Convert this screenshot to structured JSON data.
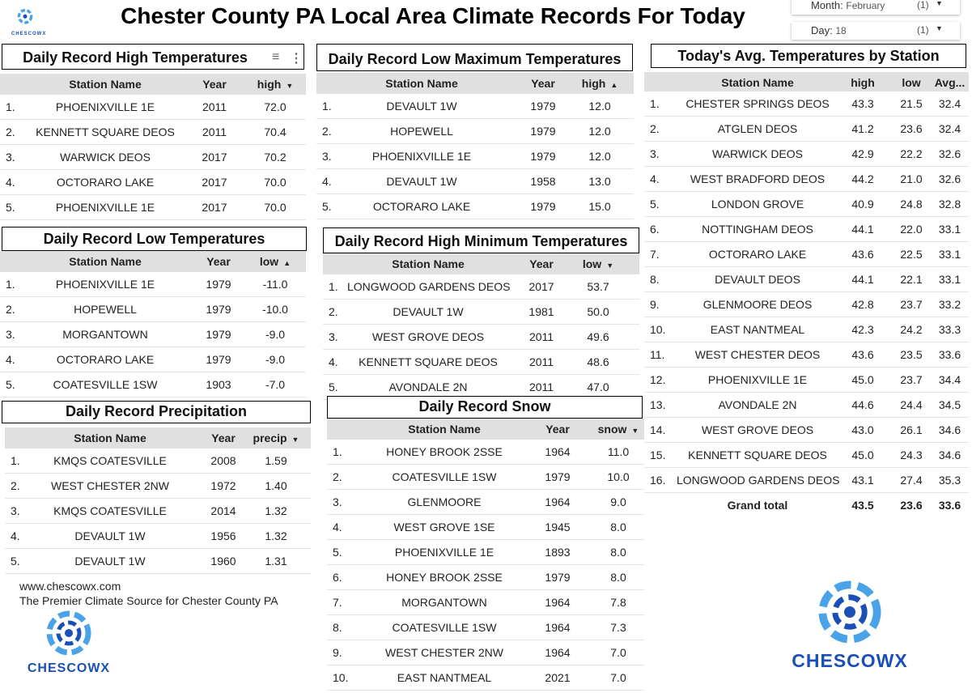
{
  "header": {
    "title": "Chester County PA Local Area Climate Records For Today",
    "logo_text": "CHESCOWX"
  },
  "filters": [
    {
      "label": "Month:",
      "value": "February",
      "count": "(1)"
    },
    {
      "label": "Day:",
      "value": "18",
      "count": "(1)"
    }
  ],
  "tables": {
    "high": {
      "title": "Daily Record High Temperatures",
      "headers": [
        "Station Name",
        "Year",
        "high"
      ],
      "sort": "▼",
      "rows": [
        [
          "1.",
          "PHOENIXVILLE 1E",
          "2011",
          "72.0"
        ],
        [
          "2.",
          "KENNETT SQUARE DEOS",
          "2011",
          "70.4"
        ],
        [
          "3.",
          "WARWICK DEOS",
          "2017",
          "70.2"
        ],
        [
          "4.",
          "OCTORARO LAKE",
          "2017",
          "70.0"
        ],
        [
          "5.",
          "PHOENIXVILLE 1E",
          "2017",
          "70.0"
        ]
      ]
    },
    "lowmax": {
      "title": "Daily Record Low Maximum Temperatures",
      "headers": [
        "Station Name",
        "Year",
        "high"
      ],
      "sort": "▲",
      "rows": [
        [
          "1.",
          "DEVAULT 1W",
          "1979",
          "12.0"
        ],
        [
          "2.",
          "HOPEWELL",
          "1979",
          "12.0"
        ],
        [
          "3.",
          "PHOENIXVILLE 1E",
          "1979",
          "12.0"
        ],
        [
          "4.",
          "DEVAULT 1W",
          "1958",
          "13.0"
        ],
        [
          "5.",
          "OCTORARO LAKE",
          "1979",
          "15.0"
        ]
      ]
    },
    "low": {
      "title": "Daily Record Low Temperatures",
      "headers": [
        "Station Name",
        "Year",
        "low"
      ],
      "sort": "▲",
      "rows": [
        [
          "1.",
          "PHOENIXVILLE 1E",
          "1979",
          "-11.0"
        ],
        [
          "2.",
          "HOPEWELL",
          "1979",
          "-10.0"
        ],
        [
          "3.",
          "MORGANTOWN",
          "1979",
          "-9.0"
        ],
        [
          "4.",
          "OCTORARO LAKE",
          "1979",
          "-9.0"
        ],
        [
          "5.",
          "COATESVILLE 1SW",
          "1903",
          "-7.0"
        ]
      ]
    },
    "highmin": {
      "title": "Daily Record High Minimum Temperatures",
      "headers": [
        "Station Name",
        "Year",
        "low"
      ],
      "sort": "▼",
      "rows": [
        [
          "1.",
          "LONGWOOD GARDENS DEOS",
          "2017",
          "53.7"
        ],
        [
          "2.",
          "DEVAULT 1W",
          "1981",
          "50.0"
        ],
        [
          "3.",
          "WEST GROVE DEOS",
          "2011",
          "49.6"
        ],
        [
          "4.",
          "KENNETT SQUARE DEOS",
          "2011",
          "48.6"
        ],
        [
          "5.",
          "AVONDALE 2N",
          "2011",
          "47.0"
        ]
      ]
    },
    "precip": {
      "title": "Daily Record Precipitation",
      "headers": [
        "Station Name",
        "Year",
        "precip"
      ],
      "sort": "▼",
      "rows": [
        [
          "1.",
          "KMQS COATESVILLE",
          "2008",
          "1.59"
        ],
        [
          "2.",
          "WEST CHESTER 2NW",
          "1972",
          "1.40"
        ],
        [
          "3.",
          "KMQS COATESVILLE",
          "2014",
          "1.32"
        ],
        [
          "4.",
          "DEVAULT 1W",
          "1956",
          "1.32"
        ],
        [
          "5.",
          "DEVAULT 1W",
          "1960",
          "1.31"
        ]
      ]
    },
    "snow": {
      "title": "Daily Record Snow",
      "headers": [
        "Station Name",
        "Year",
        "snow"
      ],
      "sort": "▼",
      "rows": [
        [
          "1.",
          "HONEY BROOK 2SSE",
          "1964",
          "11.0"
        ],
        [
          "2.",
          "COATESVILLE 1SW",
          "1979",
          "10.0"
        ],
        [
          "3.",
          "GLENMOORE",
          "1964",
          "9.0"
        ],
        [
          "4.",
          "WEST GROVE 1SE",
          "1945",
          "8.0"
        ],
        [
          "5.",
          "PHOENIXVILLE 1E",
          "1893",
          "8.0"
        ],
        [
          "6.",
          "HONEY BROOK 2SSE",
          "1979",
          "8.0"
        ],
        [
          "7.",
          "MORGANTOWN",
          "1964",
          "7.8"
        ],
        [
          "8.",
          "COATESVILLE 1SW",
          "1964",
          "7.3"
        ],
        [
          "9.",
          "WEST CHESTER 2NW",
          "1964",
          "7.0"
        ],
        [
          "10.",
          "EAST NANTMEAL",
          "2021",
          "7.0"
        ]
      ]
    },
    "avg": {
      "title": "Today's Avg. Temperatures by Station",
      "headers": [
        "Station Name",
        "high",
        "low",
        "Avg..."
      ],
      "rows": [
        [
          "1.",
          "CHESTER SPRINGS DEOS",
          "43.3",
          "21.5",
          "32.4"
        ],
        [
          "2.",
          "ATGLEN DEOS",
          "41.2",
          "23.6",
          "32.4"
        ],
        [
          "3.",
          "WARWICK DEOS",
          "42.9",
          "22.2",
          "32.6"
        ],
        [
          "4.",
          "WEST BRADFORD DEOS",
          "44.2",
          "21.0",
          "32.6"
        ],
        [
          "5.",
          "LONDON GROVE",
          "40.9",
          "24.8",
          "32.8"
        ],
        [
          "6.",
          "NOTTINGHAM DEOS",
          "44.1",
          "22.0",
          "33.1"
        ],
        [
          "7.",
          "OCTORARO LAKE",
          "43.6",
          "22.5",
          "33.1"
        ],
        [
          "8.",
          "DEVAULT DEOS",
          "44.1",
          "22.1",
          "33.1"
        ],
        [
          "9.",
          "GLENMOORE DEOS",
          "42.8",
          "23.7",
          "33.2"
        ],
        [
          "10.",
          "EAST NANTMEAL",
          "42.3",
          "24.2",
          "33.3"
        ],
        [
          "11.",
          "WEST CHESTER DEOS",
          "43.6",
          "23.5",
          "33.6"
        ],
        [
          "12.",
          "PHOENIXVILLE 1E",
          "45.0",
          "23.7",
          "34.4"
        ],
        [
          "13.",
          "AVONDALE 2N",
          "44.6",
          "24.4",
          "34.5"
        ],
        [
          "14.",
          "WEST GROVE DEOS",
          "43.0",
          "26.1",
          "34.6"
        ],
        [
          "15.",
          "KENNETT SQUARE DEOS",
          "45.0",
          "24.3",
          "34.6"
        ],
        [
          "16.",
          "LONGWOOD GARDENS DEOS",
          "43.1",
          "27.4",
          "35.3"
        ]
      ],
      "total": [
        "Grand total",
        "43.5",
        "23.6",
        "33.6"
      ]
    }
  },
  "footer": {
    "site": "www.chescowx.com",
    "tagline": "The Premier Climate Source for Chester County PA"
  },
  "colors": {
    "header_bg": "#e0e0e0",
    "logo_dark": "#1a4fb5",
    "logo_light": "#4aa3e8"
  }
}
